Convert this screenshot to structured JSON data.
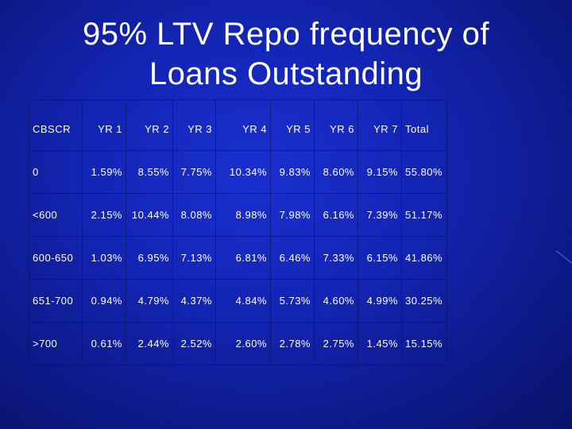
{
  "slide": {
    "title_line1": "95% LTV Repo frequency of",
    "title_line2": "Loans Outstanding"
  },
  "table": {
    "headers": [
      "CBSCR",
      "YR 1",
      "YR 2",
      "YR 3",
      "YR 4",
      "YR 5",
      "YR 6",
      "YR 7",
      "Total"
    ],
    "rows": [
      [
        "0",
        "1.59%",
        "8.55%",
        "7.75%",
        "10.34%",
        "9.83%",
        "8.60%",
        "9.15%",
        "55.80%"
      ],
      [
        "<600",
        "2.15%",
        "10.44%",
        "8.08%",
        "8.98%",
        "7.98%",
        "6.16%",
        "7.39%",
        "51.17%"
      ],
      [
        "600-650",
        "1.03%",
        "6.95%",
        "7.13%",
        "6.81%",
        "6.46%",
        "7.33%",
        "6.15%",
        "41.86%"
      ],
      [
        "651-700",
        "0.94%",
        "4.79%",
        "4.37%",
        "4.84%",
        "5.73%",
        "4.60%",
        "4.99%",
        "30.25%"
      ],
      [
        ">700",
        "0.61%",
        "2.44%",
        "2.52%",
        "2.60%",
        "2.78%",
        "2.75%",
        "1.45%",
        "15.15%"
      ]
    ]
  }
}
